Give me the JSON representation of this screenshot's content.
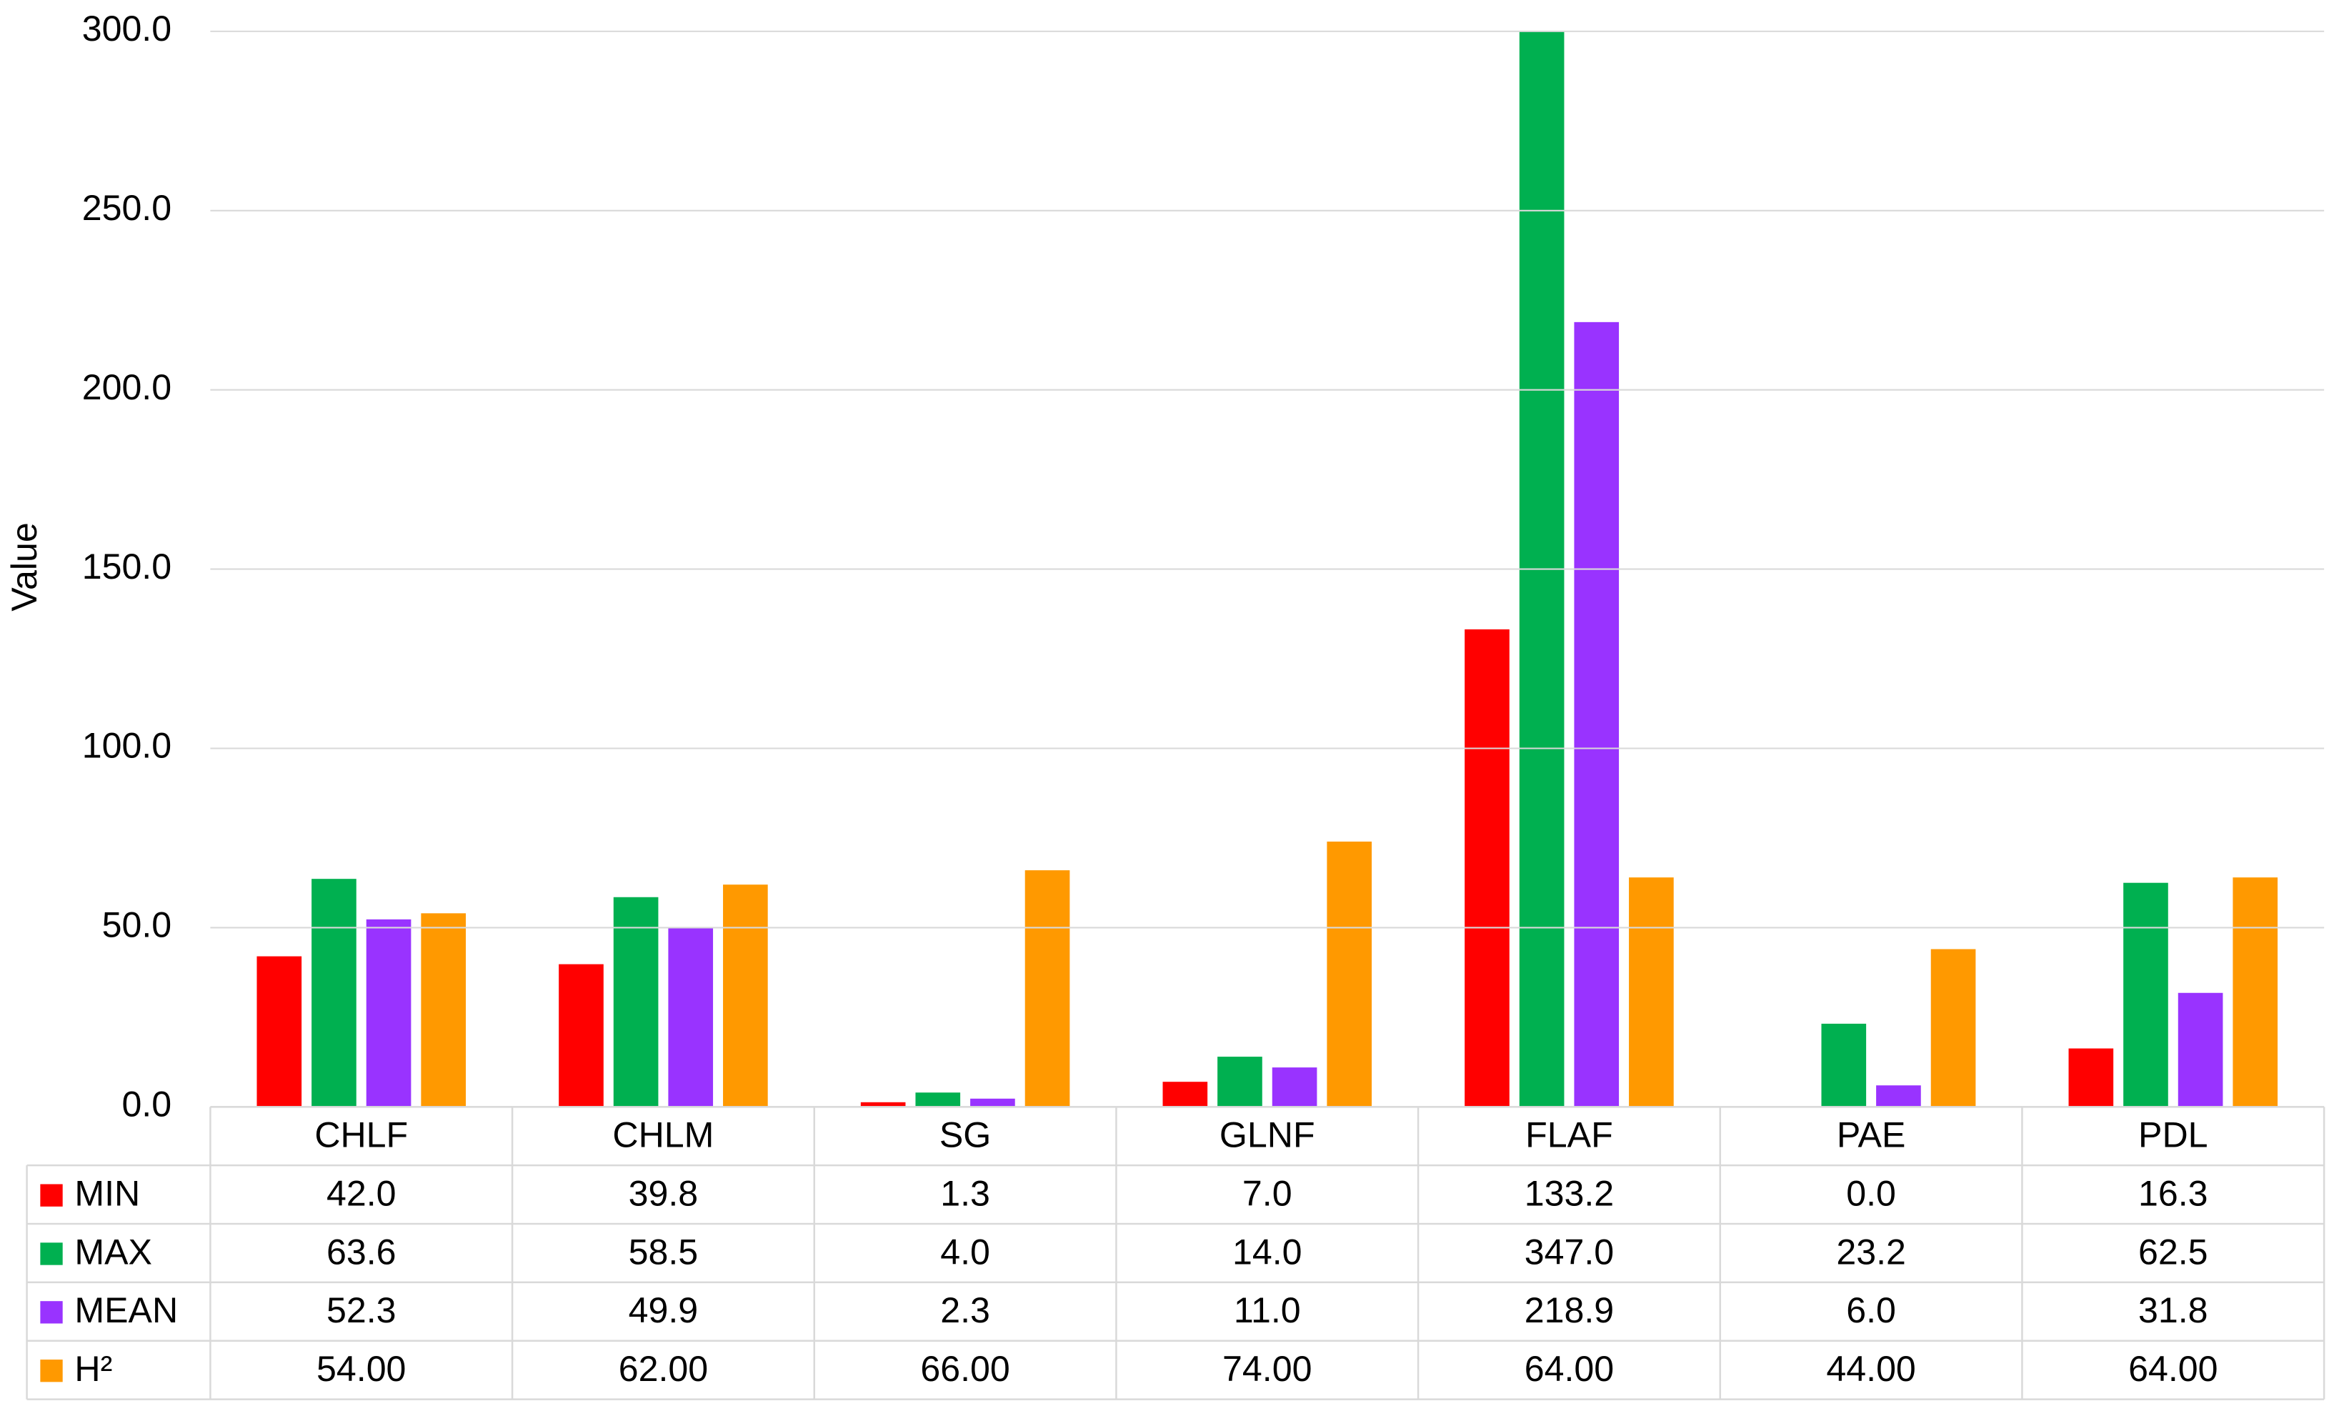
{
  "chart_data": {
    "type": "bar",
    "y_label": "Value",
    "categories": [
      "CHLF",
      "CHLM",
      "SG",
      "GLNF",
      "FLAF",
      "PAE",
      "PDL"
    ],
    "series": [
      {
        "name": "MIN",
        "color": "#ff0000",
        "values": [
          42.0,
          39.8,
          1.3,
          7.0,
          133.2,
          0.0,
          16.3
        ],
        "value_labels": [
          "42.0",
          "39.8",
          "1.3",
          "7.0",
          "133.2",
          "0.0",
          "16.3"
        ]
      },
      {
        "name": "MAX",
        "color": "#00b050",
        "values": [
          63.6,
          58.5,
          4.0,
          14.0,
          347.0,
          23.2,
          62.5
        ],
        "value_labels": [
          "63.6",
          "58.5",
          "4.0",
          "14.0",
          "347.0",
          "23.2",
          "62.5"
        ]
      },
      {
        "name": "MEAN",
        "color": "#9933ff",
        "values": [
          52.3,
          49.9,
          2.3,
          11.0,
          218.9,
          6.0,
          31.8
        ],
        "value_labels": [
          "52.3",
          "49.9",
          "2.3",
          "11.0",
          "218.9",
          "6.0",
          "31.8"
        ]
      },
      {
        "name": "H²",
        "color": "#ff9900",
        "values": [
          54,
          62,
          66,
          74,
          64,
          44,
          64
        ],
        "value_labels": [
          "54.00",
          "62.00",
          "66.00",
          "74.00",
          "64.00",
          "44.00",
          "64.00"
        ]
      }
    ],
    "ylim": [
      0,
      300
    ],
    "yticks": [
      {
        "value": 0,
        "label": "0.0"
      },
      {
        "value": 50,
        "label": "50.0"
      },
      {
        "value": 100,
        "label": "100.0"
      },
      {
        "value": 150,
        "label": "150.0"
      },
      {
        "value": 200,
        "label": "200.0"
      },
      {
        "value": 250,
        "label": "250.0"
      },
      {
        "value": 300,
        "label": "300.0"
      }
    ],
    "grid": true,
    "legend": "table"
  }
}
